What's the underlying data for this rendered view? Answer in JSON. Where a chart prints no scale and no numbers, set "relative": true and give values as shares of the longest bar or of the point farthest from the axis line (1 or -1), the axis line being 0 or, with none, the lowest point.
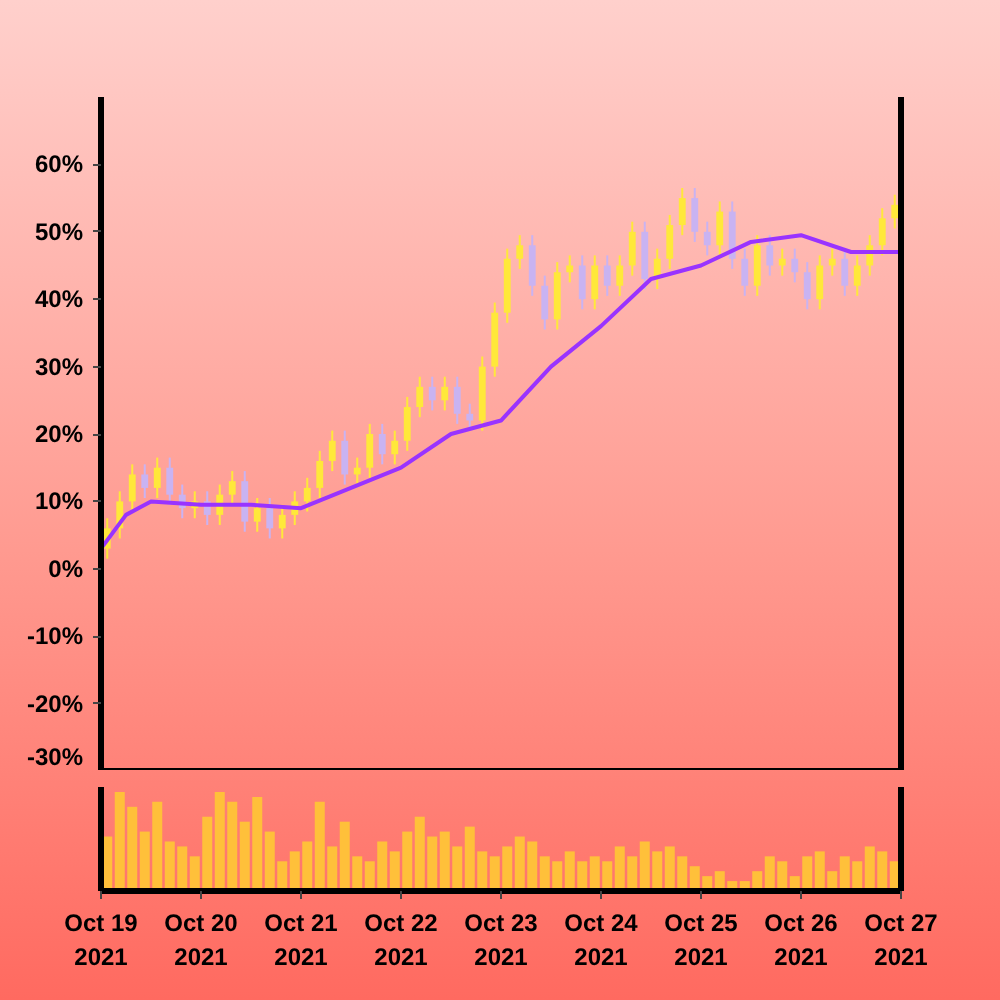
{
  "chart_data": [
    {
      "type": "candlestick",
      "tick_labels": "y",
      "xlim": [
        "2021-10-19",
        "2021-10-27"
      ],
      "ylim": [
        -30,
        70
      ],
      "yticks": [
        {
          "value": -30,
          "label": "-30%"
        },
        {
          "value": -20,
          "label": "-20%"
        },
        {
          "value": -10,
          "label": "-10%"
        },
        {
          "value": 0,
          "label": "0%"
        },
        {
          "value": 10,
          "label": "10%"
        },
        {
          "value": 20,
          "label": "20%"
        },
        {
          "value": 30,
          "label": "30%"
        },
        {
          "value": 40,
          "label": "40%"
        },
        {
          "value": 50,
          "label": "50%"
        },
        {
          "value": 60,
          "label": "60%"
        }
      ],
      "series": [
        {
          "type": "candlestick",
          "x": [
            "2021-10-19T01:30",
            "2021-10-19T04:30",
            "2021-10-19T07:30",
            "2021-10-19T10:30",
            "2021-10-19T13:30",
            "2021-10-19T16:30",
            "2021-10-19T19:30",
            "2021-10-19T22:30",
            "2021-10-20T01:30",
            "2021-10-20T04:30",
            "2021-10-20T07:30",
            "2021-10-20T10:30",
            "2021-10-20T13:30",
            "2021-10-20T16:30",
            "2021-10-20T19:30",
            "2021-10-20T22:30",
            "2021-10-21T01:30",
            "2021-10-21T04:30",
            "2021-10-21T07:30",
            "2021-10-21T10:30",
            "2021-10-21T13:30",
            "2021-10-21T16:30",
            "2021-10-21T19:30",
            "2021-10-21T22:30",
            "2021-10-22T01:30",
            "2021-10-22T04:30",
            "2021-10-22T07:30",
            "2021-10-22T10:30",
            "2021-10-22T13:30",
            "2021-10-22T16:30",
            "2021-10-22T19:30",
            "2021-10-22T22:30",
            "2021-10-23T01:30",
            "2021-10-23T04:30",
            "2021-10-23T07:30",
            "2021-10-23T10:30",
            "2021-10-23T13:30",
            "2021-10-23T16:30",
            "2021-10-23T19:30",
            "2021-10-23T22:30",
            "2021-10-24T01:30",
            "2021-10-24T04:30",
            "2021-10-24T07:30",
            "2021-10-24T10:30",
            "2021-10-24T13:30",
            "2021-10-24T16:30",
            "2021-10-24T19:30",
            "2021-10-24T22:30",
            "2021-10-25T01:30",
            "2021-10-25T04:30",
            "2021-10-25T07:30",
            "2021-10-25T10:30",
            "2021-10-25T13:30",
            "2021-10-25T16:30",
            "2021-10-25T19:30",
            "2021-10-25T22:30",
            "2021-10-26T01:30",
            "2021-10-26T04:30",
            "2021-10-26T07:30",
            "2021-10-26T10:30",
            "2021-10-26T13:30",
            "2021-10-26T16:30",
            "2021-10-26T19:30",
            "2021-10-26T22:30"
          ],
          "ohlc": [
            [
              3,
              7.5,
              1.5,
              6
            ],
            [
              6,
              11.5,
              4.5,
              10
            ],
            [
              10,
              15.5,
              8.5,
              14
            ],
            [
              14,
              15.5,
              10.5,
              12
            ],
            [
              12,
              16.5,
              10.5,
              15
            ],
            [
              15,
              16.5,
              9.5,
              11
            ],
            [
              11,
              12.5,
              7.5,
              9
            ],
            [
              9,
              11.5,
              7.5,
              10
            ],
            [
              10,
              11.5,
              6.5,
              8
            ],
            [
              8,
              12.5,
              6.5,
              11
            ],
            [
              11,
              14.5,
              9.5,
              13
            ],
            [
              13,
              14.5,
              5.5,
              7
            ],
            [
              7,
              10.5,
              5.5,
              9
            ],
            [
              9,
              10.5,
              4.5,
              6
            ],
            [
              6,
              9.5,
              4.5,
              8
            ],
            [
              8,
              11.5,
              6.5,
              10
            ],
            [
              10,
              13.5,
              8.5,
              12
            ],
            [
              12,
              17.5,
              10.5,
              16
            ],
            [
              16,
              20.5,
              14.5,
              19
            ],
            [
              19,
              20.5,
              12.5,
              14
            ],
            [
              14,
              16.5,
              12.5,
              15
            ],
            [
              15,
              21.5,
              13.5,
              20
            ],
            [
              20,
              21.5,
              15.5,
              17
            ],
            [
              17,
              20.5,
              15.5,
              19
            ],
            [
              19,
              25.5,
              17.5,
              24
            ],
            [
              24,
              28.5,
              22.5,
              27
            ],
            [
              27,
              28.5,
              23.5,
              25
            ],
            [
              25,
              28.5,
              23.5,
              27
            ],
            [
              27,
              28.5,
              21.5,
              23
            ],
            [
              23,
              24.5,
              20.5,
              22
            ],
            [
              22,
              31.5,
              20.5,
              30
            ],
            [
              30,
              39.5,
              28.5,
              38
            ],
            [
              38,
              47.5,
              36.5,
              46
            ],
            [
              46,
              49.5,
              44.5,
              48
            ],
            [
              48,
              49.5,
              40.5,
              42
            ],
            [
              42,
              43.5,
              35.5,
              37
            ],
            [
              37,
              45.5,
              35.5,
              44
            ],
            [
              44,
              46.5,
              42.5,
              45
            ],
            [
              45,
              46.5,
              38.5,
              40
            ],
            [
              40,
              46.5,
              38.5,
              45
            ],
            [
              45,
              46.5,
              40.5,
              42
            ],
            [
              42,
              46.5,
              40.5,
              45
            ],
            [
              45,
              51.5,
              43.5,
              50
            ],
            [
              50,
              51.5,
              41.5,
              43
            ],
            [
              43,
              47.5,
              41.5,
              46
            ],
            [
              46,
              52.5,
              44.5,
              51
            ],
            [
              51,
              56.5,
              49.5,
              55
            ],
            [
              55,
              56.5,
              48.5,
              50
            ],
            [
              50,
              51.5,
              46.5,
              48
            ],
            [
              48,
              54.5,
              46.5,
              53
            ],
            [
              53,
              54.5,
              44.5,
              46
            ],
            [
              46,
              47.5,
              40.5,
              42
            ],
            [
              42,
              49.5,
              40.5,
              48
            ],
            [
              48,
              49.5,
              43.5,
              45
            ],
            [
              45,
              47.5,
              43.5,
              46
            ],
            [
              46,
              47.5,
              42.5,
              44
            ],
            [
              44,
              45.5,
              38.5,
              40
            ],
            [
              40,
              46.5,
              38.5,
              45
            ],
            [
              45,
              47.5,
              43.5,
              46
            ],
            [
              46,
              47.5,
              40.5,
              42
            ],
            [
              42,
              46.5,
              40.5,
              45
            ],
            [
              45,
              49.5,
              43.5,
              48
            ],
            [
              48,
              53.5,
              46.5,
              52
            ],
            [
              52,
              55.5,
              50.5,
              54
            ]
          ],
          "colors": [
            "#ffe83a",
            "#ffe83a",
            "#ffe83a",
            "#c9b3f2",
            "#ffe83a",
            "#c9b3f2",
            "#c9b3f2",
            "#ffe83a",
            "#c9b3f2",
            "#ffe83a",
            "#ffe83a",
            "#c9b3f2",
            "#ffe83a",
            "#c9b3f2",
            "#ffe83a",
            "#ffe83a",
            "#ffe83a",
            "#ffe83a",
            "#ffe83a",
            "#c9b3f2",
            "#ffe83a",
            "#ffe83a",
            "#c9b3f2",
            "#ffe83a",
            "#ffe83a",
            "#ffe83a",
            "#c9b3f2",
            "#ffe83a",
            "#c9b3f2",
            "#c9b3f2",
            "#ffe83a",
            "#ffe83a",
            "#ffe83a",
            "#ffe83a",
            "#c9b3f2",
            "#c9b3f2",
            "#ffe83a",
            "#ffe83a",
            "#c9b3f2",
            "#ffe83a",
            "#c9b3f2",
            "#ffe83a",
            "#ffe83a",
            "#c9b3f2",
            "#ffe83a",
            "#ffe83a",
            "#ffe83a",
            "#c9b3f2",
            "#c9b3f2",
            "#ffe83a",
            "#c9b3f2",
            "#c9b3f2",
            "#ffe83a",
            "#c9b3f2",
            "#ffe83a",
            "#c9b3f2",
            "#c9b3f2",
            "#ffe83a",
            "#ffe83a",
            "#c9b3f2",
            "#ffe83a",
            "#ffe83a",
            "#ffe83a",
            "#ffe83a"
          ]
        },
        {
          "type": "line",
          "color": "#9933ff",
          "x": [
            "2021-10-19T00:00",
            "2021-10-19T06:00",
            "2021-10-19T12:00",
            "2021-10-20T00:00",
            "2021-10-20T12:00",
            "2021-10-21T00:00",
            "2021-10-21T12:00",
            "2021-10-22T00:00",
            "2021-10-22T12:00",
            "2021-10-23T00:00",
            "2021-10-23T12:00",
            "2021-10-24T00:00",
            "2021-10-24T12:00",
            "2021-10-25T00:00",
            "2021-10-25T12:00",
            "2021-10-26T00:00",
            "2021-10-26T12:00",
            "2021-10-27T00:00"
          ],
          "values": [
            3,
            8,
            10,
            9.5,
            9.5,
            9,
            12,
            15,
            20,
            22,
            30,
            36,
            43,
            45,
            48.5,
            49.5,
            47,
            47
          ]
        }
      ]
    },
    {
      "type": "bar",
      "relative": true,
      "tick_labels": "x",
      "color": "#ffc03a",
      "xlim": [
        "2021-10-19",
        "2021-10-27"
      ],
      "xticks": [
        {
          "value": "2021-10-19",
          "label": "Oct 19\n2021"
        },
        {
          "value": "2021-10-20",
          "label": "Oct 20\n2021"
        },
        {
          "value": "2021-10-21",
          "label": "Oct 21\n2021"
        },
        {
          "value": "2021-10-22",
          "label": "Oct 22\n2021"
        },
        {
          "value": "2021-10-23",
          "label": "Oct 23\n2021"
        },
        {
          "value": "2021-10-24",
          "label": "Oct 24\n2021"
        },
        {
          "value": "2021-10-25",
          "label": "Oct 25\n2021"
        },
        {
          "value": "2021-10-26",
          "label": "Oct 26\n2021"
        },
        {
          "value": "2021-10-27",
          "label": "Oct 27\n2021"
        }
      ],
      "x": [
        "2021-10-19T01:30",
        "2021-10-19T04:30",
        "2021-10-19T07:30",
        "2021-10-19T10:30",
        "2021-10-19T13:30",
        "2021-10-19T16:30",
        "2021-10-19T19:30",
        "2021-10-19T22:30",
        "2021-10-20T01:30",
        "2021-10-20T04:30",
        "2021-10-20T07:30",
        "2021-10-20T10:30",
        "2021-10-20T13:30",
        "2021-10-20T16:30",
        "2021-10-20T19:30",
        "2021-10-20T22:30",
        "2021-10-21T01:30",
        "2021-10-21T04:30",
        "2021-10-21T07:30",
        "2021-10-21T10:30",
        "2021-10-21T13:30",
        "2021-10-21T16:30",
        "2021-10-21T19:30",
        "2021-10-21T22:30",
        "2021-10-22T01:30",
        "2021-10-22T04:30",
        "2021-10-22T07:30",
        "2021-10-22T10:30",
        "2021-10-22T13:30",
        "2021-10-22T16:30",
        "2021-10-22T19:30",
        "2021-10-22T22:30",
        "2021-10-23T01:30",
        "2021-10-23T04:30",
        "2021-10-23T07:30",
        "2021-10-23T10:30",
        "2021-10-23T13:30",
        "2021-10-23T16:30",
        "2021-10-23T19:30",
        "2021-10-23T22:30",
        "2021-10-24T01:30",
        "2021-10-24T04:30",
        "2021-10-24T07:30",
        "2021-10-24T10:30",
        "2021-10-24T13:30",
        "2021-10-24T16:30",
        "2021-10-24T19:30",
        "2021-10-24T22:30",
        "2021-10-25T01:30",
        "2021-10-25T04:30",
        "2021-10-25T07:30",
        "2021-10-25T10:30",
        "2021-10-25T13:30",
        "2021-10-25T16:30",
        "2021-10-25T19:30",
        "2021-10-25T22:30",
        "2021-10-26T01:30",
        "2021-10-26T04:30",
        "2021-10-26T07:30",
        "2021-10-26T10:30",
        "2021-10-26T13:30",
        "2021-10-26T16:30",
        "2021-10-26T19:30",
        "2021-10-26T22:30"
      ],
      "values": [
        0.55,
        1,
        0.85,
        0.6,
        0.9,
        0.5,
        0.45,
        0.35,
        0.75,
        1,
        0.9,
        0.7,
        0.95,
        0.6,
        0.3,
        0.4,
        0.5,
        0.9,
        0.45,
        0.7,
        0.35,
        0.3,
        0.5,
        0.4,
        0.6,
        0.75,
        0.55,
        0.6,
        0.45,
        0.65,
        0.4,
        0.35,
        0.45,
        0.55,
        0.5,
        0.35,
        0.3,
        0.4,
        0.3,
        0.35,
        0.3,
        0.45,
        0.35,
        0.5,
        0.4,
        0.45,
        0.35,
        0.25,
        0.15,
        0.2,
        0.1,
        0.1,
        0.2,
        0.35,
        0.3,
        0.15,
        0.35,
        0.4,
        0.2,
        0.35,
        0.3,
        0.45,
        0.4,
        0.3
      ]
    }
  ]
}
